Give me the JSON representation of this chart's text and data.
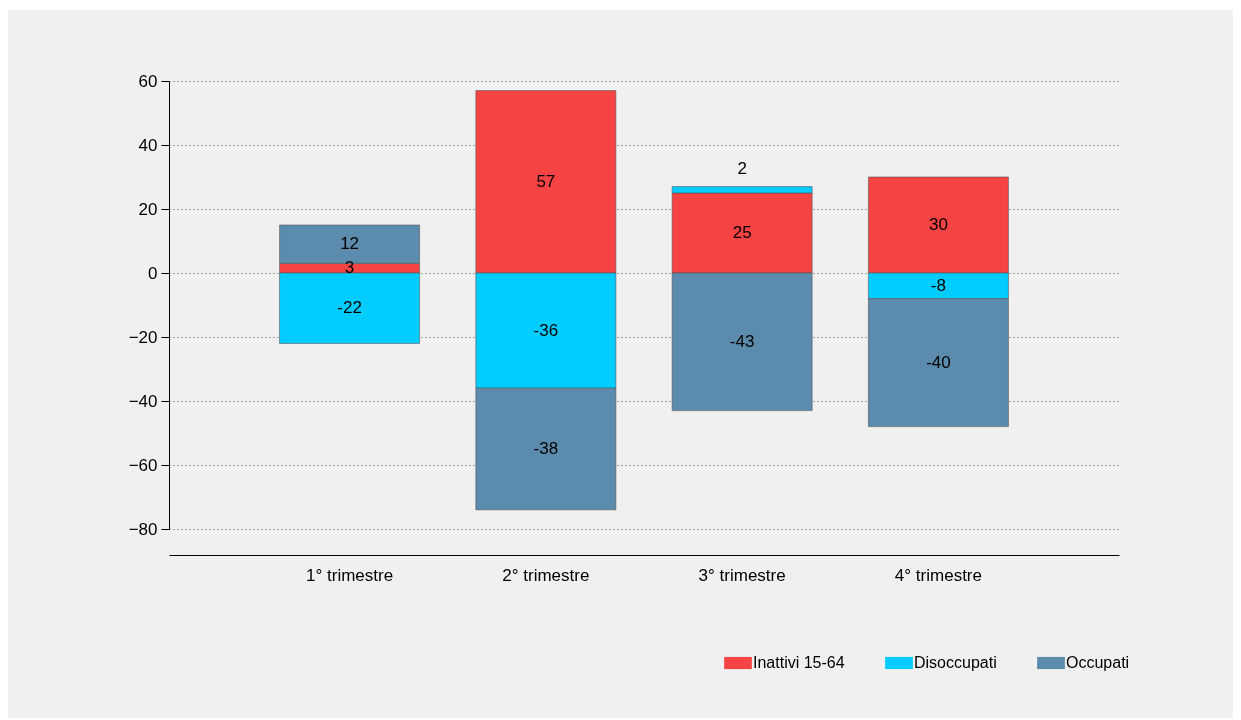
{
  "chart_data": {
    "type": "bar",
    "stacked": true,
    "categories": [
      "1° trimestre",
      "2° trimestre",
      "3° trimestre",
      "4° trimestre"
    ],
    "series": [
      {
        "name": "Inattivi 15-64",
        "color": "#f64444",
        "values": [
          3,
          57,
          25,
          30
        ]
      },
      {
        "name": "Disoccupati",
        "color": "#00ccff",
        "values": [
          -22,
          -36,
          2,
          -8
        ]
      },
      {
        "name": "Occupati",
        "color": "#5b8bad",
        "values": [
          12,
          -38,
          -43,
          -40
        ]
      }
    ],
    "ylim": [
      -80,
      60
    ],
    "yticks": [
      -80,
      -60,
      -40,
      -20,
      0,
      20,
      40,
      60
    ],
    "grid": "y",
    "legend": "bottom right",
    "data_labels": true
  }
}
